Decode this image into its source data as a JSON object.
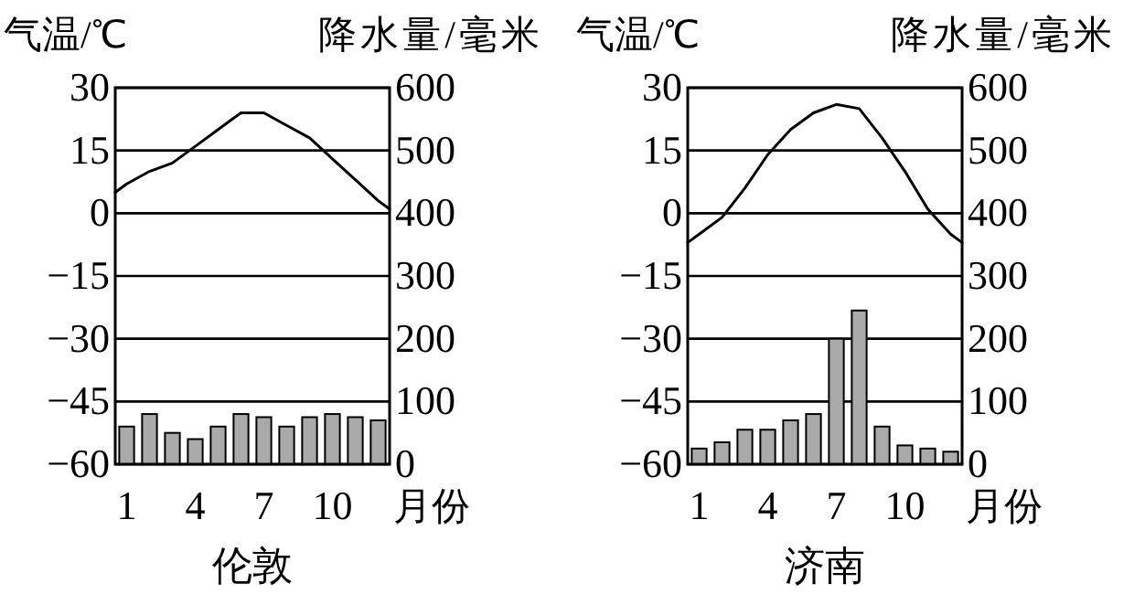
{
  "chart_data": [
    {
      "type": "bar",
      "title": "伦敦",
      "xlabel": "月份",
      "ylabel": "气温/℃",
      "y2label": "降水量/毫米",
      "xlim": [
        0.5,
        12.5
      ],
      "xticks": [
        1,
        4,
        7,
        10
      ],
      "ylim": [
        -60,
        30
      ],
      "yticks": [
        -60,
        -45,
        -30,
        -15,
        0,
        15,
        30
      ],
      "y2lim": [
        0,
        600
      ],
      "y2ticks": [
        0,
        100,
        200,
        300,
        400,
        500,
        600
      ],
      "grid": "y",
      "series": [
        {
          "axis": "y2",
          "color": "#aaaaaa",
          "x": [
            1,
            2,
            3,
            4,
            5,
            6,
            7,
            8,
            9,
            10,
            11,
            12
          ],
          "values": [
            60,
            80,
            50,
            40,
            60,
            80,
            75,
            60,
            75,
            80,
            75,
            70
          ]
        },
        {
          "type": "line",
          "axis": "y",
          "color": "#000000",
          "x": [
            0.5,
            1,
            2,
            3,
            4,
            5,
            6,
            7,
            8,
            9,
            10,
            11,
            12,
            12.5
          ],
          "values": [
            5,
            7,
            10,
            12,
            16,
            20,
            24,
            24,
            21,
            18,
            13,
            8,
            3,
            1
          ]
        }
      ]
    },
    {
      "type": "bar",
      "title": "济南",
      "xlabel": "月份",
      "ylabel": "气温/℃",
      "y2label": "降水量/毫米",
      "xlim": [
        0.5,
        12.5
      ],
      "xticks": [
        1,
        4,
        7,
        10
      ],
      "ylim": [
        -60,
        30
      ],
      "yticks": [
        -60,
        -45,
        -30,
        -15,
        0,
        15,
        30
      ],
      "y2lim": [
        0,
        600
      ],
      "y2ticks": [
        0,
        100,
        200,
        300,
        400,
        500,
        600
      ],
      "grid": "y",
      "series": [
        {
          "axis": "y2",
          "color": "#aaaaaa",
          "x": [
            1,
            2,
            3,
            4,
            5,
            6,
            7,
            8,
            9,
            10,
            11,
            12
          ],
          "values": [
            25,
            35,
            55,
            55,
            70,
            80,
            200,
            245,
            60,
            30,
            25,
            20
          ]
        },
        {
          "type": "line",
          "axis": "y",
          "color": "#000000",
          "x": [
            0.5,
            1,
            2,
            3,
            4,
            5,
            6,
            7,
            8,
            9,
            10,
            11,
            12,
            12.5
          ],
          "values": [
            -7,
            -5,
            -1,
            6,
            14,
            20,
            24,
            26,
            25,
            18,
            10,
            1,
            -5,
            -7
          ]
        }
      ]
    }
  ]
}
